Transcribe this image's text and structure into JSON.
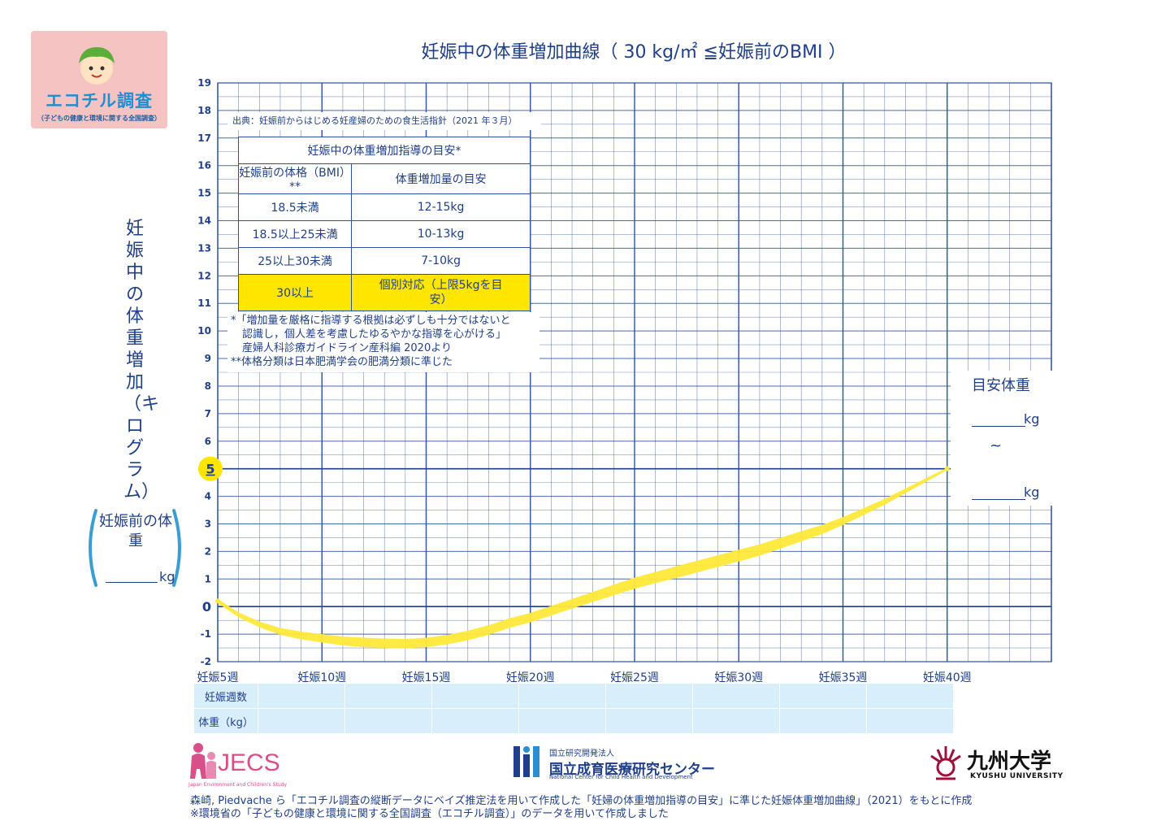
{
  "title": "妊娠中の体重増加曲線（ 30 kg/㎡ ≦妊娠前のBMI ）",
  "logo": {
    "name": "エコチル調査",
    "sub": "（子どもの健康と環境に関する全国調査）"
  },
  "y_axis_label": "妊娠中の体重増加（キログラム）",
  "source": "出典：妊娠前からはじめる妊産婦のための食生活指針（2021 年３月）",
  "guide_table": {
    "title": "妊娠中の体重増加指導の目安*",
    "headers": [
      "妊娠前の体格（BMI）**",
      "体重増加量の目安"
    ],
    "rows": [
      [
        "18.5未満",
        "12-15kg"
      ],
      [
        "18.5以上25未満",
        "10-13kg"
      ],
      [
        "25以上30未満",
        "7-10kg"
      ],
      [
        "30以上",
        "個別対応（上限5kgを目安）"
      ]
    ]
  },
  "notes": [
    "*「増加量を厳格に指導する根拠は必ずしも十分ではないと",
    "認識し，個人差を考慮したゆるやかな指導を心がける」",
    "産婦人科診療ガイドライン産科編 2020より",
    "**体格分類は日本肥満学会の肥満分類に準じた"
  ],
  "pre_weight": {
    "label": "妊娠前の体重",
    "unit": "kg"
  },
  "target_weight": {
    "label": "目安体重",
    "unit": "kg",
    "tilde": "~"
  },
  "bottom_table": {
    "row_labels": [
      "妊娠週数",
      "体重（kg）"
    ]
  },
  "chart_data": {
    "type": "line",
    "title": "妊娠中の体重増加曲線（ 30 kg/㎡ ≦妊娠前のBMI ）",
    "xlabel": "",
    "ylabel": "妊娠中の体重増加（キログラム）",
    "xlim": [
      5,
      45
    ],
    "ylim": [
      -2,
      19
    ],
    "x_ticks": [
      5,
      10,
      15,
      20,
      25,
      30,
      35,
      40
    ],
    "x_tick_labels": [
      "妊娠5週",
      "妊娠10週",
      "妊娠15週",
      "妊娠20週",
      "妊娠25週",
      "妊娠30週",
      "妊娠35週",
      "妊娠40週"
    ],
    "y_ticks": [
      -2,
      -1,
      0,
      1,
      2,
      3,
      4,
      5,
      6,
      7,
      8,
      9,
      10,
      11,
      12,
      13,
      14,
      15,
      16,
      17,
      18,
      19
    ],
    "highlight_y": 5,
    "grid": true,
    "series": [
      {
        "x": [
          5,
          6,
          7,
          8,
          9,
          10,
          11,
          12,
          13,
          14,
          15,
          16,
          17,
          18,
          19,
          20,
          21,
          22,
          23,
          24,
          25,
          26,
          27,
          28,
          29,
          30,
          31,
          32,
          33,
          34,
          35,
          36,
          37,
          38,
          39,
          40
        ],
        "y": [
          0.2,
          -0.3,
          -0.65,
          -0.9,
          -1.05,
          -1.15,
          -1.25,
          -1.3,
          -1.33,
          -1.35,
          -1.3,
          -1.2,
          -1.05,
          -0.85,
          -0.6,
          -0.4,
          -0.15,
          0.1,
          0.35,
          0.6,
          0.85,
          1.05,
          1.25,
          1.45,
          1.65,
          1.85,
          2.05,
          2.3,
          2.55,
          2.8,
          3.1,
          3.45,
          3.8,
          4.2,
          4.6,
          5.0
        ],
        "color": "#ffe93a"
      }
    ],
    "band_halfwidth": [
      0.05,
      0.06,
      0.08,
      0.1,
      0.12,
      0.13,
      0.14,
      0.15,
      0.15,
      0.15,
      0.15,
      0.15,
      0.15,
      0.15,
      0.15,
      0.15,
      0.15,
      0.15,
      0.16,
      0.17,
      0.18,
      0.18,
      0.19,
      0.19,
      0.19,
      0.19,
      0.18,
      0.17,
      0.16,
      0.14,
      0.12,
      0.1,
      0.08,
      0.06,
      0.04,
      0.02
    ]
  },
  "logos": {
    "jecs": "JECS",
    "jecs_sub": "Japan Environment and Children's Study",
    "ncchd_small": "国立研究開発法人",
    "ncchd_name": "国立成育医療研究センター",
    "ncchd_en": "National Center for Child Health and Development",
    "kyushu": "九州大学",
    "kyushu_en": "KYUSHU UNIVERSITY"
  },
  "credits": [
    "森崎, Piedvache ら「エコチル調査の縦断データにベイズ推定法を用いて作成した「妊婦の体重増加指導の目安」に準じた妊娠体重増加曲線」（2021）をもとに作成",
    "※環境省の「子どもの健康と環境に関する全国調査（エコチル調査）」のデータを用いて作成しました"
  ]
}
